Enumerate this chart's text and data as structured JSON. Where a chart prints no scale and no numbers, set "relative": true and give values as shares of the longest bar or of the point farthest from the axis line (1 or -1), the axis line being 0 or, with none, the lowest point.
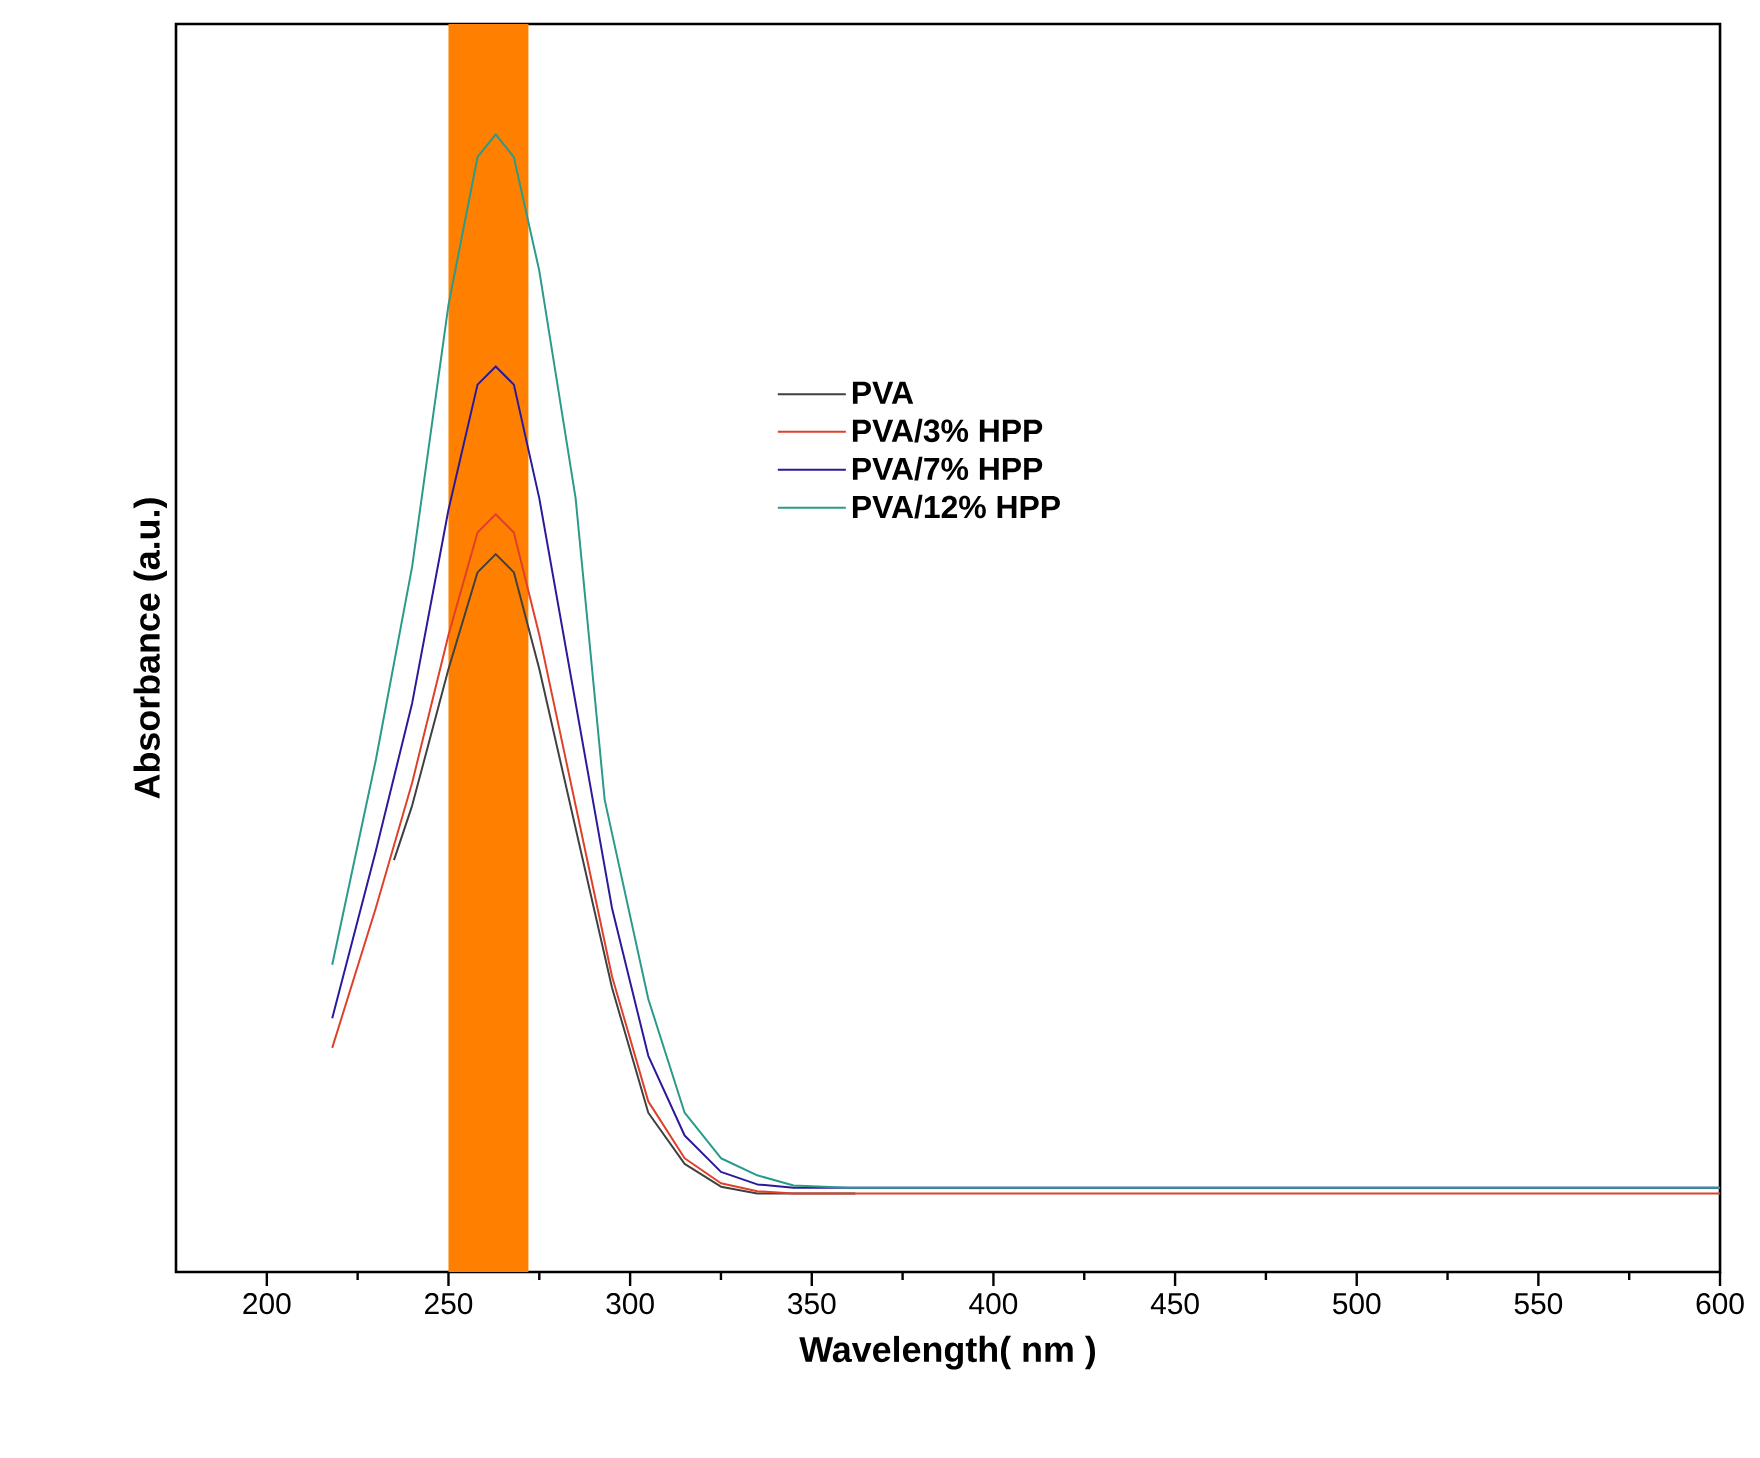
{
  "chart_data": {
    "type": "line",
    "xlabel": "Wavelength( nm )",
    "ylabel": "Absorbance (a.u.)",
    "relative": true,
    "xlim": [
      175,
      600
    ],
    "xticks": [
      200,
      250,
      300,
      350,
      400,
      450,
      500,
      550,
      600
    ],
    "tick_labels": "x",
    "legend": "right",
    "marker": "none",
    "line_style": "solid",
    "grid": false,
    "bands": [
      {
        "axis": "x",
        "from": 250,
        "to": 272,
        "color": "#ff8000"
      }
    ],
    "series": [
      {
        "name": "PVA",
        "color": "#404040",
        "x": [
          235,
          240,
          250,
          258,
          263,
          268,
          275,
          285,
          295,
          305,
          315,
          325,
          335,
          345,
          362
        ],
        "values": [
          0.362,
          0.41,
          0.53,
          0.615,
          0.631,
          0.615,
          0.53,
          0.39,
          0.25,
          0.14,
          0.095,
          0.075,
          0.069,
          0.069,
          0.069
        ]
      },
      {
        "name": "PVA/3% HPP",
        "color": "#e0402a",
        "x": [
          218,
          230,
          240,
          250,
          258,
          263,
          268,
          275,
          285,
          295,
          305,
          315,
          325,
          335,
          345,
          600
        ],
        "values": [
          0.197,
          0.32,
          0.43,
          0.56,
          0.65,
          0.666,
          0.65,
          0.56,
          0.41,
          0.26,
          0.15,
          0.1,
          0.078,
          0.071,
          0.069,
          0.069
        ]
      },
      {
        "name": "PVA/7% HPP",
        "color": "#2a1a9a",
        "x": [
          218,
          230,
          240,
          250,
          258,
          263,
          268,
          275,
          285,
          295,
          305,
          315,
          325,
          335,
          345,
          360,
          600
        ],
        "values": [
          0.223,
          0.37,
          0.5,
          0.67,
          0.78,
          0.796,
          0.78,
          0.68,
          0.5,
          0.32,
          0.19,
          0.12,
          0.088,
          0.077,
          0.074,
          0.074,
          0.074
        ]
      },
      {
        "name": "PVA/12% HPP",
        "color": "#2a9a8a",
        "x": [
          218,
          230,
          240,
          250,
          258,
          263,
          268,
          275,
          285,
          293,
          305,
          315,
          325,
          335,
          345,
          360,
          600
        ],
        "values": [
          0.27,
          0.45,
          0.62,
          0.85,
          0.98,
          1.0,
          0.98,
          0.88,
          0.68,
          0.415,
          0.24,
          0.14,
          0.1,
          0.085,
          0.076,
          0.074,
          0.074
        ]
      }
    ]
  }
}
